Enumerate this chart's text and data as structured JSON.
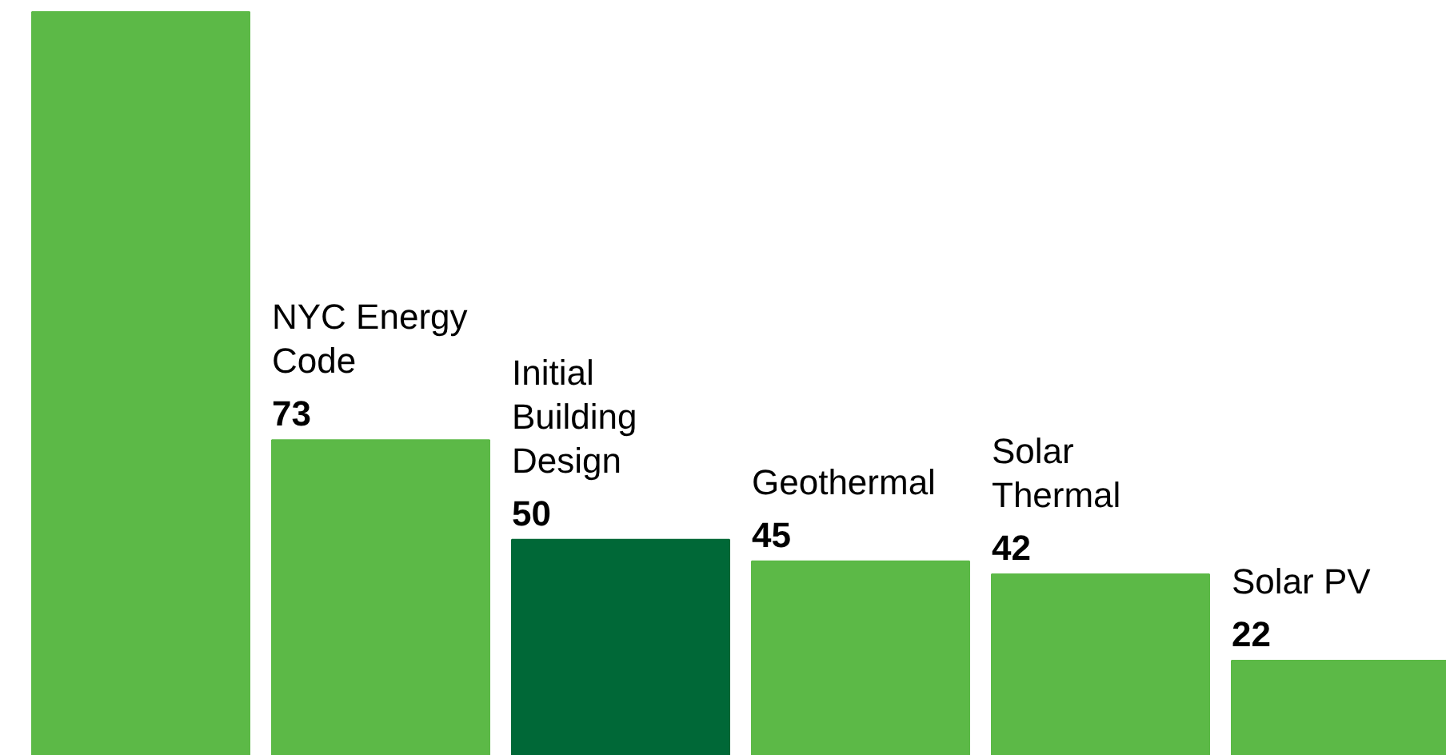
{
  "chart_data": {
    "type": "bar",
    "categories": [
      null,
      "NYC Energy Code",
      "Initial Building Design",
      "Geothermal",
      "Solar Thermal",
      "Solar PV"
    ],
    "values": [
      172,
      73,
      50,
      45,
      42,
      22
    ],
    "colors": [
      "#5cb947",
      "#5cb947",
      "#006837",
      "#5cb947",
      "#5cb947",
      "#5cb947"
    ],
    "value_labels": [
      null,
      "73",
      "50",
      "45",
      "42",
      "22"
    ],
    "grid": false
  }
}
